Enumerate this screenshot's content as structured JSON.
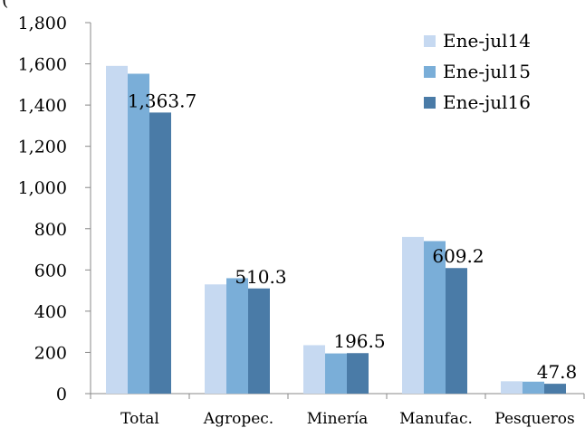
{
  "chart_data": {
    "type": "bar",
    "title": "",
    "xlabel": "",
    "ylabel": "",
    "header_fragment": "(",
    "categories": [
      "Total",
      "Agropec.",
      "Minería",
      "Manufac.",
      "Pesqueros"
    ],
    "series": [
      {
        "name": "Ene-jul14",
        "color": "#c6d9f1",
        "values": [
          1590,
          530,
          235,
          760,
          60
        ]
      },
      {
        "name": "Ene-jul15",
        "color": "#7aaed8",
        "values": [
          1552,
          560,
          195,
          740,
          58
        ]
      },
      {
        "name": "Ene-jul16",
        "color": "#4a7ba7",
        "values": [
          1363.7,
          510.3,
          196.5,
          609.2,
          47.8
        ]
      }
    ],
    "data_labels": {
      "series_index": 2,
      "texts": [
        "1,363.7",
        "510.3",
        "196.5",
        "609.2",
        "47.8"
      ]
    },
    "ylim": [
      0,
      1800
    ],
    "yticks": [
      0,
      200,
      400,
      600,
      800,
      1000,
      1200,
      1400,
      1600,
      1800
    ],
    "ytick_labels": [
      "0",
      "200",
      "400",
      "600",
      "800",
      "1,000",
      "1,200",
      "1,400",
      "1,600",
      "1,800"
    ],
    "grid": false,
    "legend_position": "top-right"
  }
}
